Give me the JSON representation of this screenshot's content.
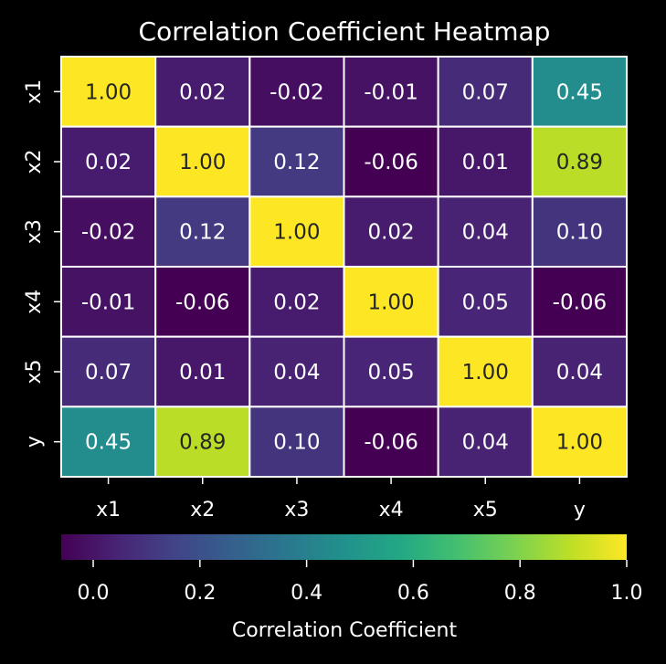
{
  "chart_data": {
    "type": "heatmap",
    "title": "Correlation Coefficient Heatmap",
    "x_labels": [
      "x1",
      "x2",
      "x3",
      "x4",
      "x5",
      "y"
    ],
    "y_labels": [
      "x1",
      "x2",
      "x3",
      "x4",
      "x5",
      "y"
    ],
    "values": [
      [
        1.0,
        0.02,
        -0.02,
        -0.01,
        0.07,
        0.45
      ],
      [
        0.02,
        1.0,
        0.12,
        -0.06,
        0.01,
        0.89
      ],
      [
        -0.02,
        0.12,
        1.0,
        0.02,
        0.04,
        0.1
      ],
      [
        -0.01,
        -0.06,
        0.02,
        1.0,
        0.05,
        -0.06
      ],
      [
        0.07,
        0.01,
        0.04,
        0.05,
        1.0,
        0.04
      ],
      [
        0.45,
        0.89,
        0.1,
        -0.06,
        0.04,
        1.0
      ]
    ],
    "value_format_decimals": 2,
    "colormap": "viridis",
    "color_range": [
      -0.06,
      1.0
    ],
    "colorbar": {
      "label": "Correlation Coefficient",
      "ticks": [
        "0.0",
        "0.2",
        "0.4",
        "0.6",
        "0.8",
        "1.0"
      ],
      "orientation": "horizontal",
      "placement": "bottom"
    },
    "background_color": "#000000",
    "text_color": "#ffffff",
    "cell_border_color": "#ffffff",
    "annotation_dark_color": "#262626",
    "annotation_light_color": "#ffffff"
  }
}
